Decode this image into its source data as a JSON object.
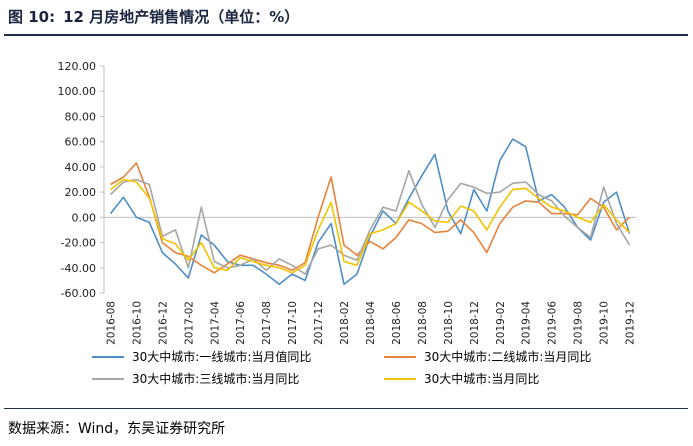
{
  "header": {
    "figure_no": "图 10:",
    "title": "12 月房地产销售情况（单位：%）"
  },
  "source": "数据来源：Wind，东吴证券研究所",
  "chart_data": {
    "type": "line",
    "title": "12 月房地产销售情况（单位：%）",
    "ylim": [
      -60,
      120
    ],
    "yticks": [
      "120.00",
      "100.00",
      "80.00",
      "60.00",
      "40.00",
      "20.00",
      "0.00",
      "-20.00",
      "-40.00",
      "-60.00"
    ],
    "categories": [
      "2016-08",
      "2016-09",
      "2016-10",
      "2016-11",
      "2016-12",
      "2017-01",
      "2017-02",
      "2017-03",
      "2017-04",
      "2017-05",
      "2017-06",
      "2017-07",
      "2017-08",
      "2017-09",
      "2017-10",
      "2017-11",
      "2017-12",
      "2018-01",
      "2018-02",
      "2018-03",
      "2018-04",
      "2018-05",
      "2018-06",
      "2018-07",
      "2018-08",
      "2018-09",
      "2018-10",
      "2018-11",
      "2018-12",
      "2019-01",
      "2019-02",
      "2019-03",
      "2019-04",
      "2019-05",
      "2019-06",
      "2019-07",
      "2019-08",
      "2019-09",
      "2019-10",
      "2019-11",
      "2019-12"
    ],
    "xticks": [
      "2016-08",
      "2016-10",
      "2016-12",
      "2017-02",
      "2017-04",
      "2017-06",
      "2017-08",
      "2017-10",
      "2017-12",
      "2018-02",
      "2018-04",
      "2018-06",
      "2018-08",
      "2018-10",
      "2018-12",
      "2019-02",
      "2019-04",
      "2019-06",
      "2019-08",
      "2019-10",
      "2019-12"
    ],
    "series": [
      {
        "name": "30大中城市:一线城市:当月值同比",
        "color": "#4f8dc9",
        "values": [
          3,
          16,
          0,
          -4,
          -28,
          -37,
          -48,
          -14,
          -22,
          -35,
          -38,
          -38,
          -45,
          -53,
          -45,
          -50,
          -20,
          -5,
          -53,
          -45,
          -15,
          5,
          -5,
          15,
          33,
          50,
          5,
          -13,
          22,
          5,
          45,
          62,
          56,
          13,
          18,
          8,
          -8,
          -18,
          12,
          20,
          -13
        ]
      },
      {
        "name": "30大中城市:二线城市:当月同比",
        "color": "#e8823a",
        "values": [
          26,
          32,
          43,
          16,
          -20,
          -28,
          -31,
          -38,
          -44,
          -37,
          -30,
          -33,
          -36,
          -38,
          -42,
          -36,
          0,
          32,
          -22,
          -30,
          -19,
          -25,
          -16,
          -2,
          -5,
          -12,
          -11,
          -2,
          -12,
          -28,
          -5,
          8,
          13,
          12,
          3,
          3,
          2,
          15,
          8,
          -10,
          0
        ]
      },
      {
        "name": "30大中城市:三线城市:当月同比",
        "color": "#a6a6a6",
        "values": [
          18,
          28,
          30,
          26,
          -15,
          -10,
          -40,
          8,
          -35,
          -40,
          -38,
          -33,
          -42,
          -33,
          -38,
          -45,
          -25,
          -22,
          -30,
          -34,
          -10,
          8,
          5,
          37,
          10,
          -8,
          14,
          27,
          24,
          19,
          20,
          27,
          28,
          18,
          13,
          1,
          -8,
          -16,
          24,
          -5,
          -22
        ]
      },
      {
        "name": "30大中城市:当月同比",
        "color": "#f2c400",
        "values": [
          22,
          30,
          28,
          15,
          -17,
          -21,
          -34,
          -20,
          -40,
          -42,
          -32,
          -35,
          -38,
          -40,
          -44,
          -38,
          -10,
          12,
          -35,
          -38,
          -13,
          -10,
          -5,
          12,
          5,
          -3,
          -4,
          9,
          5,
          -10,
          8,
          22,
          23,
          15,
          8,
          5,
          0,
          -4,
          10,
          -2,
          -12
        ]
      }
    ]
  }
}
